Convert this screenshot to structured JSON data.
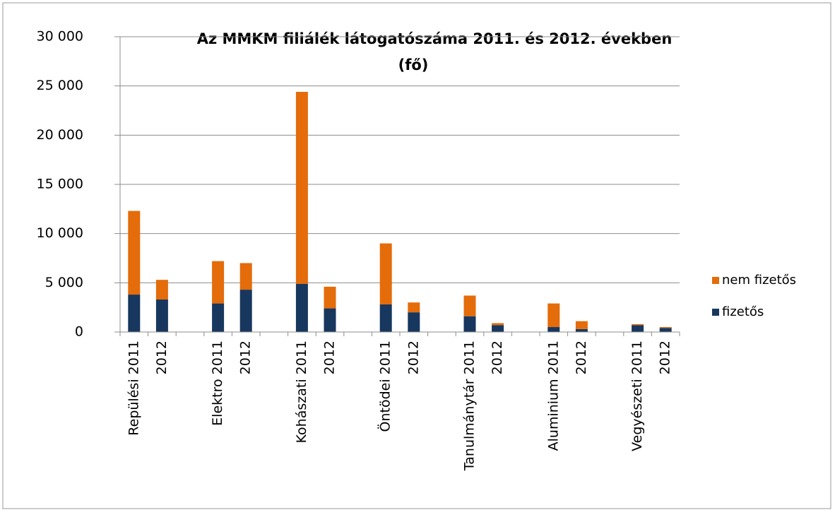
{
  "chart_data": {
    "type": "stacked_bar",
    "title": "Az MMKM filiálék látogatószáma 2011. és 2012. években",
    "subtitle": "(fő)",
    "categories": [
      "Repülési 2011",
      "2012",
      null,
      "Elektro 2011",
      "2012",
      null,
      "Kohászati 2011",
      "2012",
      null,
      "Öntödei 2011",
      "2012",
      null,
      "Tanulmánytár 2011",
      "2012",
      null,
      "Aluminium 2011",
      "2012",
      null,
      "Vegyészeti 2011",
      "2012"
    ],
    "series": [
      {
        "name": "fizetős",
        "color": "#17375e",
        "values": [
          3800,
          3300,
          null,
          2900,
          4300,
          null,
          4900,
          2400,
          null,
          2800,
          2000,
          null,
          1600,
          700,
          null,
          500,
          300,
          null,
          700,
          400
        ]
      },
      {
        "name": "nem fizetős",
        "color": "#e46c0a",
        "values": [
          8500,
          2000,
          null,
          4300,
          2700,
          null,
          19500,
          2200,
          null,
          6200,
          1000,
          null,
          2100,
          200,
          null,
          2400,
          800,
          null,
          100,
          100
        ]
      }
    ],
    "ylim": [
      0,
      30000
    ],
    "yticks": [
      0,
      {
        "value": 5000,
        "label": "5 000"
      },
      {
        "value": 10000,
        "label": "10 000"
      },
      {
        "value": 15000,
        "label": "15 000"
      },
      {
        "value": 20000,
        "label": "20 000"
      },
      {
        "value": 25000,
        "label": "25 000"
      },
      {
        "value": 30000,
        "label": "30 000"
      }
    ],
    "grid": true,
    "legend": "right"
  }
}
